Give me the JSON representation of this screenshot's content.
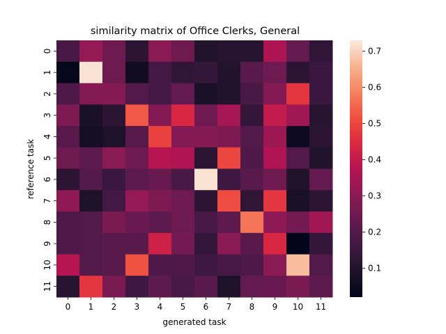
{
  "chart_data": {
    "type": "heatmap",
    "title": "similarity matrix of Office Clerks, General",
    "xlabel": "generated task",
    "ylabel": "reference task",
    "x_categories": [
      "0",
      "1",
      "2",
      "3",
      "4",
      "5",
      "6",
      "7",
      "8",
      "9",
      "10",
      "11"
    ],
    "y_categories": [
      "0",
      "1",
      "2",
      "3",
      "4",
      "5",
      "6",
      "7",
      "8",
      "9",
      "10",
      "11"
    ],
    "values": [
      [
        0.18,
        0.32,
        0.25,
        0.12,
        0.3,
        0.25,
        0.1,
        0.11,
        0.11,
        0.36,
        0.23,
        0.13
      ],
      [
        0.03,
        0.72,
        0.25,
        0.06,
        0.17,
        0.13,
        0.14,
        0.1,
        0.21,
        0.25,
        0.12,
        0.15
      ],
      [
        0.19,
        0.29,
        0.29,
        0.2,
        0.17,
        0.23,
        0.08,
        0.1,
        0.18,
        0.29,
        0.47,
        0.15
      ],
      [
        0.28,
        0.08,
        0.12,
        0.53,
        0.29,
        0.44,
        0.25,
        0.35,
        0.14,
        0.4,
        0.34,
        0.11
      ],
      [
        0.21,
        0.07,
        0.09,
        0.21,
        0.49,
        0.29,
        0.29,
        0.28,
        0.2,
        0.33,
        0.05,
        0.12
      ],
      [
        0.25,
        0.22,
        0.3,
        0.25,
        0.38,
        0.37,
        0.12,
        0.5,
        0.19,
        0.37,
        0.2,
        0.1
      ],
      [
        0.12,
        0.2,
        0.15,
        0.22,
        0.24,
        0.18,
        0.72,
        0.16,
        0.21,
        0.25,
        0.1,
        0.23
      ],
      [
        0.31,
        0.09,
        0.17,
        0.32,
        0.28,
        0.25,
        0.12,
        0.51,
        0.13,
        0.47,
        0.08,
        0.12
      ],
      [
        0.19,
        0.2,
        0.27,
        0.24,
        0.22,
        0.25,
        0.18,
        0.22,
        0.57,
        0.31,
        0.26,
        0.34
      ],
      [
        0.19,
        0.2,
        0.21,
        0.21,
        0.42,
        0.26,
        0.14,
        0.3,
        0.21,
        0.44,
        0.02,
        0.14
      ],
      [
        0.38,
        0.2,
        0.21,
        0.52,
        0.19,
        0.19,
        0.16,
        0.18,
        0.19,
        0.3,
        0.67,
        0.2
      ],
      [
        0.11,
        0.47,
        0.27,
        0.16,
        0.22,
        0.18,
        0.21,
        0.09,
        0.23,
        0.24,
        0.27,
        0.22
      ]
    ],
    "vmin": 0.02,
    "vmax": 0.73,
    "colorbar_ticks": [
      "0.1",
      "0.2",
      "0.3",
      "0.4",
      "0.5",
      "0.6",
      "0.7"
    ],
    "colormap": "rocket",
    "grid": false
  }
}
